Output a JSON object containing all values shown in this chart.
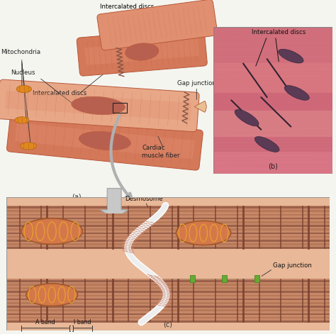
{
  "bg_color": "#f5f5f0",
  "fig_width": 4.74,
  "fig_height": 4.71,
  "dpi": 100,
  "panel_a": {
    "label": "(a)",
    "muscle_color": "#d4785a",
    "muscle_light": "#e09070",
    "muscle_dark": "#b85838",
    "muscle_inner": "#c86848",
    "nucleus_color": "#b86050",
    "highlight_color": "#e8a888"
  },
  "panel_b": {
    "label": "(b)",
    "bg_main": "#d47080",
    "bg_light": "#e09090",
    "line_color": "#553345",
    "nucleus_color": "#664455"
  },
  "panel_c": {
    "label": "(c)",
    "bg_color": "#e8b898",
    "sarcomere_bg": "#d4957a",
    "band_dark": "#8B5540",
    "band_medium": "#a06848",
    "band_light": "#c88868",
    "zline_color": "#7a4030",
    "mito_outer": "#d4784a",
    "mito_inner": "#e8a030",
    "gap_junction_color": "#66aa33",
    "membrane_color": "#ffffff",
    "desmosome_color": "#cc9988"
  },
  "arrow_color": "#b8b8b8",
  "label_fontsize": 7,
  "annotation_fontsize": 6.2
}
